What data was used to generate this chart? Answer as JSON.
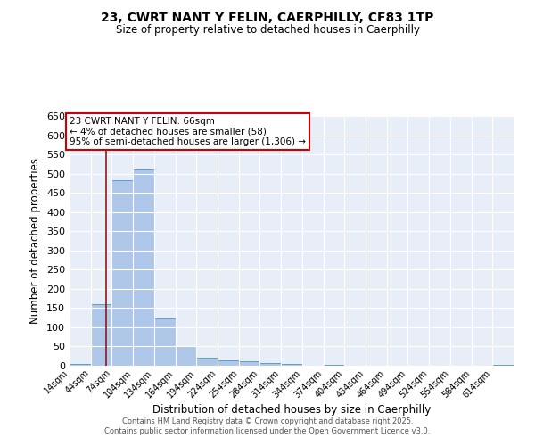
{
  "title": "23, CWRT NANT Y FELIN, CAERPHILLY, CF83 1TP",
  "subtitle": "Size of property relative to detached houses in Caerphilly",
  "xlabel": "Distribution of detached houses by size in Caerphilly",
  "ylabel": "Number of detached properties",
  "bin_labels": [
    "14sqm",
    "44sqm",
    "74sqm",
    "104sqm",
    "134sqm",
    "164sqm",
    "194sqm",
    "224sqm",
    "254sqm",
    "284sqm",
    "314sqm",
    "344sqm",
    "374sqm",
    "404sqm",
    "434sqm",
    "464sqm",
    "494sqm",
    "524sqm",
    "554sqm",
    "584sqm",
    "614sqm"
  ],
  "bin_edges": [
    14,
    44,
    74,
    104,
    134,
    164,
    194,
    224,
    254,
    284,
    314,
    344,
    374,
    404,
    434,
    464,
    494,
    524,
    554,
    584,
    614,
    644
  ],
  "bar_values": [
    5,
    160,
    483,
    510,
    122,
    52,
    22,
    13,
    11,
    8,
    5,
    0,
    3,
    0,
    0,
    0,
    0,
    0,
    0,
    0,
    3
  ],
  "bar_color": "#aec6e8",
  "bar_edge_color": "#5a9fd4",
  "property_size": 66,
  "vline_color": "#8b1a1a",
  "ylim": [
    0,
    650
  ],
  "yticks": [
    0,
    50,
    100,
    150,
    200,
    250,
    300,
    350,
    400,
    450,
    500,
    550,
    600,
    650
  ],
  "annotation_text": "23 CWRT NANT Y FELIN: 66sqm\n← 4% of detached houses are smaller (58)\n95% of semi-detached houses are larger (1,306) →",
  "annotation_box_color": "#ffffff",
  "annotation_box_edge": "#cc0000",
  "footer_line1": "Contains HM Land Registry data © Crown copyright and database right 2025.",
  "footer_line2": "Contains public sector information licensed under the Open Government Licence v3.0.",
  "bg_color": "#e8eef8",
  "grid_color": "#ffffff",
  "fig_bg": "#ffffff"
}
